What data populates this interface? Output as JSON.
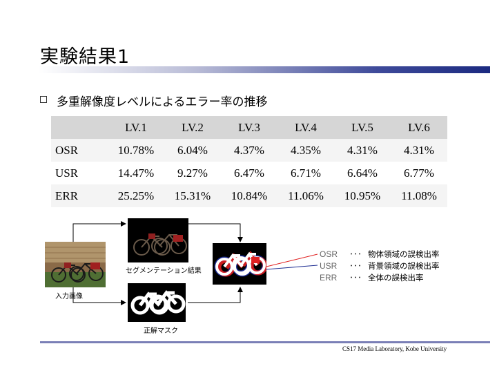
{
  "slide": {
    "title": "実験結果1",
    "bullet": "多重解像度レベルによるエラー率の推移"
  },
  "table": {
    "headers": [
      "",
      "LV.1",
      "LV.2",
      "LV.3",
      "LV.4",
      "LV.5",
      "LV.6"
    ],
    "rows": [
      {
        "label": "OSR",
        "values": [
          "10.78%",
          "6.04%",
          "4.37%",
          "4.35%",
          "4.31%",
          "4.31%"
        ]
      },
      {
        "label": "USR",
        "values": [
          "14.47%",
          "9.27%",
          "6.47%",
          "6.71%",
          "6.64%",
          "6.77%"
        ]
      },
      {
        "label": "ERR",
        "values": [
          "25.25%",
          "15.31%",
          "10.84%",
          "11.06%",
          "10.95%",
          "11.08%"
        ]
      }
    ]
  },
  "figure": {
    "input_caption": "入力画像",
    "segmentation_caption": "セグメンテーション結果",
    "mask_caption": "正解マスク",
    "osr_color": "#e02020",
    "usr_color": "#1a2a90"
  },
  "legend": [
    {
      "code": "OSR",
      "dots": "･･･",
      "desc": "物体領域の誤検出率"
    },
    {
      "code": "USR",
      "dots": "･･･",
      "desc": "背景領域の誤検出率"
    },
    {
      "code": "ERR",
      "dots": "･･･",
      "desc": "全体の誤検出率"
    }
  ],
  "footer": "CS17 Media Laboratory, Kobe University"
}
